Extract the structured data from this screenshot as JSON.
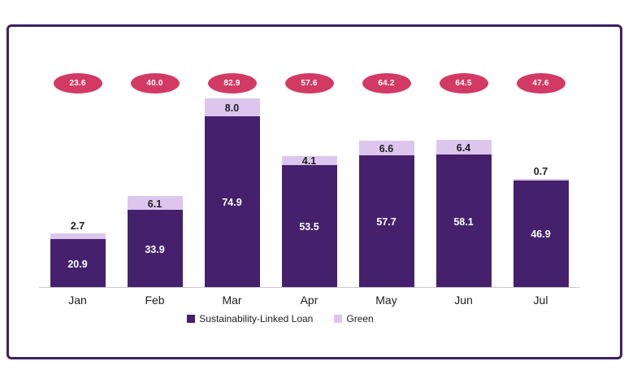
{
  "chart_data": {
    "type": "bar",
    "stacked": true,
    "title": "",
    "xlabel": "",
    "ylabel": "",
    "ylim": [
      0,
      83
    ],
    "grid": false,
    "legend_position": "bottom",
    "categories": [
      "Jan",
      "Feb",
      "Mar",
      "Apr",
      "May",
      "Jun",
      "Jul"
    ],
    "series": [
      {
        "name": "Sustainability-Linked Loan",
        "color": "#45216d",
        "values": [
          20.9,
          33.9,
          74.9,
          53.5,
          57.7,
          58.1,
          46.9
        ],
        "labels": [
          "20.9",
          "33.9",
          "74.9",
          "53.5",
          "57.7",
          "58.1",
          "46.9"
        ]
      },
      {
        "name": "Green",
        "color": "#dcc6ee",
        "values": [
          2.7,
          6.1,
          8.0,
          4.1,
          6.6,
          6.4,
          0.7
        ],
        "labels": [
          "2.7",
          "6.1",
          "8.0",
          "4.1",
          "6.6",
          "6.4",
          "0.7"
        ]
      }
    ],
    "totals": [
      23.6,
      40.0,
      82.9,
      57.6,
      64.2,
      64.5,
      47.6
    ],
    "total_labels": [
      "23.6",
      "40.0",
      "82.9",
      "57.6",
      "64.2",
      "64.5",
      "47.6"
    ],
    "total_badge_color": "#d23a64",
    "frame_border_color": "#3c2060",
    "axis_line_color": "#c9c9c9"
  }
}
